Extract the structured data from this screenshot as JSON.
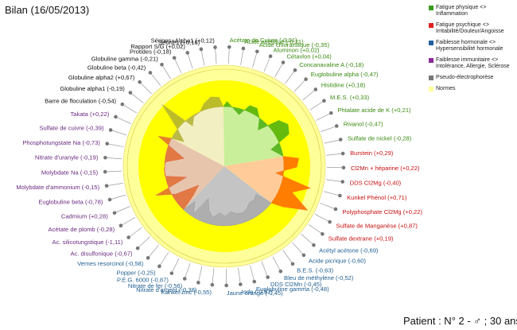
{
  "title": "Bilan  (16/05/2013)",
  "patient": "Patient : N° 2 - ♂ ; 30 ans",
  "legend": [
    {
      "lines": [
        "Fatigue physique <> Inflammation"
      ],
      "color": "#3a9a1a"
    },
    {
      "lines": [
        "Fatigue psychique <>",
        "Irritabilité/Douleur/Angoisse"
      ],
      "color": "#e02020"
    },
    {
      "lines": [
        "Faiblesse hormonale <>",
        "Hypersensibilité hormonale"
      ],
      "color": "#1f5fa0"
    },
    {
      "lines": [
        "Faiblesse immunitaire <>",
        "Intolérance, Allergie, Sclérose"
      ],
      "color": "#8a2a9a"
    },
    {
      "lines": [
        "Pseudo-électrophorèse"
      ],
      "color": "#777777"
    },
    {
      "lines": [
        "Normes"
      ],
      "color": "#ffff99"
    }
  ],
  "colors": {
    "physique": "#3a8a10",
    "psychique": "#c81010",
    "hormonale": "#1f5f90",
    "immunitaire": "#6a2a80",
    "electro": "#111111"
  },
  "chart_data": {
    "type": "radar",
    "labels": [
      {
        "text": "Acétate de Cuivre (-0,01)",
        "group": "physique",
        "value": -0.01
      },
      {
        "text": "Acide acétique (-0,21)",
        "group": "physique",
        "value": -0.21
      },
      {
        "text": "Acide chloranilique (-0,35)",
        "group": "physique",
        "value": -0.35
      },
      {
        "text": "Aluminon (+0,02)",
        "group": "physique",
        "value": 0.02
      },
      {
        "text": "Cétavlon (+0,04)",
        "group": "physique",
        "value": 0.04
      },
      {
        "text": "Concanavaline A (-0,18)",
        "group": "physique",
        "value": -0.18
      },
      {
        "text": "Euglobuline alpha (-0,47)",
        "group": "physique",
        "value": -0.47
      },
      {
        "text": "Histidine (+0,18)",
        "group": "physique",
        "value": 0.18
      },
      {
        "text": "M.E.S. (+0,33)",
        "group": "physique",
        "value": 0.33
      },
      {
        "text": "Phtalate acide de K (+0,21)",
        "group": "physique",
        "value": 0.21
      },
      {
        "text": "Rivanol (-0,47)",
        "group": "physique",
        "value": -0.47
      },
      {
        "text": "Sulfate de nickel (-0,28)",
        "group": "physique",
        "value": -0.28
      },
      {
        "text": "Burstein (+0,29)",
        "group": "psychique",
        "value": 0.29
      },
      {
        "text": "Cl2Mn + héparine (+0,22)",
        "group": "psychique",
        "value": 0.22
      },
      {
        "text": "DDS Cl2Mg (-0,40)",
        "group": "psychique",
        "value": -0.4
      },
      {
        "text": "Kunkel Phénol (+0,71)",
        "group": "psychique",
        "value": 0.71
      },
      {
        "text": "Polyphosphate Cl2Mg (+0,22)",
        "group": "psychique",
        "value": 0.22
      },
      {
        "text": "Sulfate de Manganèse (+0,87)",
        "group": "psychique",
        "value": 0.87
      },
      {
        "text": "Sulfate dextrane (+0,19)",
        "group": "psychique",
        "value": 0.19
      },
      {
        "text": "Acétyl acétone (-0,69)",
        "group": "hormonale",
        "value": -0.69
      },
      {
        "text": "Acide picrique (-0,60)",
        "group": "hormonale",
        "value": -0.6
      },
      {
        "text": "B.E.S. (-0,63)",
        "group": "hormonale",
        "value": -0.63
      },
      {
        "text": "Bleu de méthylène (-0,52)",
        "group": "hormonale",
        "value": -0.52
      },
      {
        "text": "DDS Cl2Mn (-0,45)",
        "group": "hormonale",
        "value": -0.45
      },
      {
        "text": "Euglobuline gamma (-0,48)",
        "group": "hormonale",
        "value": -0.48
      },
      {
        "text": "Iode (-0,57)",
        "group": "hormonale",
        "value": -0.57
      },
      {
        "text": "Jaune orange (-0,45)",
        "group": "hormonale",
        "value": -0.45
      },
      {
        "text": "Kunkel zinc (-0,55)",
        "group": "hormonale",
        "value": -0.55
      },
      {
        "text": "Nitrate d'argent (-0,38)",
        "group": "hormonale",
        "value": -0.38
      },
      {
        "text": "Nitrate de fer (-0,56)",
        "group": "hormonale",
        "value": -0.56
      },
      {
        "text": "P.E.G. 6000 (-0,87)",
        "group": "hormonale",
        "value": -0.87
      },
      {
        "text": "Popper (-0,25)",
        "group": "hormonale",
        "value": -0.25
      },
      {
        "text": "Vernes resorcinol (-0,58)",
        "group": "hormonale",
        "value": -0.58
      },
      {
        "text": "Ac. disulfonique (-0,67)",
        "group": "immunitaire",
        "value": -0.67
      },
      {
        "text": "Ac. silicotungstique (-1,11)",
        "group": "immunitaire",
        "value": -1.11
      },
      {
        "text": "Acétate de plomb (-0,28)",
        "group": "immunitaire",
        "value": -0.28
      },
      {
        "text": "Cadmium (+0,28)",
        "group": "immunitaire",
        "value": 0.28
      },
      {
        "text": "Euglobuline beta (-0,78)",
        "group": "immunitaire",
        "value": -0.78
      },
      {
        "text": "Molybdate d'ammonium (-0,15)",
        "group": "immunitaire",
        "value": -0.15
      },
      {
        "text": "Molybdate Na (-0,15)",
        "group": "immunitaire",
        "value": -0.15
      },
      {
        "text": "Nitrate d'uranyle (-0,19)",
        "group": "immunitaire",
        "value": -0.19
      },
      {
        "text": "Phosphotungstate Na (-0,73)",
        "group": "immunitaire",
        "value": -0.73
      },
      {
        "text": "Sulfate de cuivre (-0,39)",
        "group": "immunitaire",
        "value": -0.39
      },
      {
        "text": "Takata (+0,22)",
        "group": "immunitaire",
        "value": 0.22
      },
      {
        "text": "Barre de floculation (-0,54)",
        "group": "electro",
        "value": -0.54
      },
      {
        "text": "Globuline alpha1 (-0,19)",
        "group": "electro",
        "value": -0.19
      },
      {
        "text": "Globuline alpha2 (+0,67)",
        "group": "electro",
        "value": 0.67
      },
      {
        "text": "Globuline beta (-0,42)",
        "group": "electro",
        "value": -0.42
      },
      {
        "text": "Globuline gamma (-0,21)",
        "group": "electro",
        "value": -0.21
      },
      {
        "text": "Protides (-0,18)",
        "group": "electro",
        "value": -0.18
      },
      {
        "text": "Rapport S/G (+0,02)",
        "group": "electro",
        "value": 0.02
      },
      {
        "text": "Sérines (+0,16)",
        "group": "electro",
        "value": 0.16
      },
      {
        "text": "Sérines+Alpha1 (+0,12)",
        "group": "electro",
        "value": 0.12
      }
    ]
  }
}
